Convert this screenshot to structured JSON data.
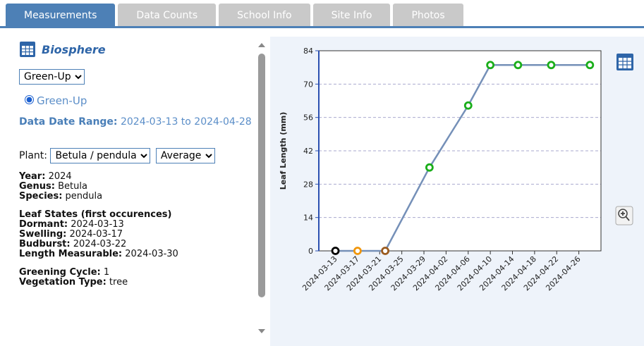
{
  "tabs": [
    "Measurements",
    "Data Counts",
    "School Info",
    "Site Info",
    "Photos"
  ],
  "sidebar": {
    "title": "Biosphere",
    "protocol_select": "Green-Up",
    "radio": "Green-Up",
    "date_range_label": "Data Date Range:",
    "date_range": "2024-03-13 to 2024-04-28",
    "plant_label": "Plant:",
    "plant_select": "Betula / pendula",
    "stat_select": "Average",
    "info": [
      {
        "label": "Year:",
        "value": "2024"
      },
      {
        "label": "Genus:",
        "value": "Betula"
      },
      {
        "label": "Species:",
        "value": "pendula"
      }
    ],
    "leaf_states_title": "Leaf States (first occurences)",
    "leaf_states": [
      {
        "label": "Dormant:",
        "value": "2024-03-13"
      },
      {
        "label": "Swelling:",
        "value": "2024-03-17"
      },
      {
        "label": "Budburst:",
        "value": "2024-03-22"
      },
      {
        "label": "Length Measurable:",
        "value": "2024-03-30"
      }
    ],
    "extra": [
      {
        "label": "Greening Cycle:",
        "value": "1"
      },
      {
        "label": "Vegetation Type:",
        "value": "tree"
      }
    ]
  },
  "chart_data": {
    "type": "line",
    "y_label": "Leaf Length (mm)",
    "x": [
      "2024-03-13",
      "2024-03-17",
      "2024-03-22",
      "2024-03-30",
      "2024-04-06",
      "2024-04-10",
      "2024-04-15",
      "2024-04-21",
      "2024-04-28"
    ],
    "values": [
      0,
      0,
      0,
      35,
      61,
      78,
      78,
      78,
      78
    ],
    "color": "#7590b8",
    "point_colors": [
      "#000000",
      "#f0960a",
      "#9a5a1e",
      "#1aae1a",
      "#1aae1a",
      "#1aae1a",
      "#1aae1a",
      "#1aae1a",
      "#1aae1a"
    ],
    "xlim": [
      "2024-03-10",
      "2024-04-30"
    ],
    "xticks": [
      "2024-03-13",
      "2024-03-17",
      "2024-03-21",
      "2024-03-25",
      "2024-03-29",
      "2024-04-02",
      "2024-04-06",
      "2024-04-10",
      "2024-04-14",
      "2024-04-18",
      "2024-04-22",
      "2024-04-26"
    ],
    "ylim": [
      0,
      84
    ],
    "yticks": [
      0,
      14,
      28,
      42,
      56,
      70,
      84
    ],
    "grid": true
  }
}
